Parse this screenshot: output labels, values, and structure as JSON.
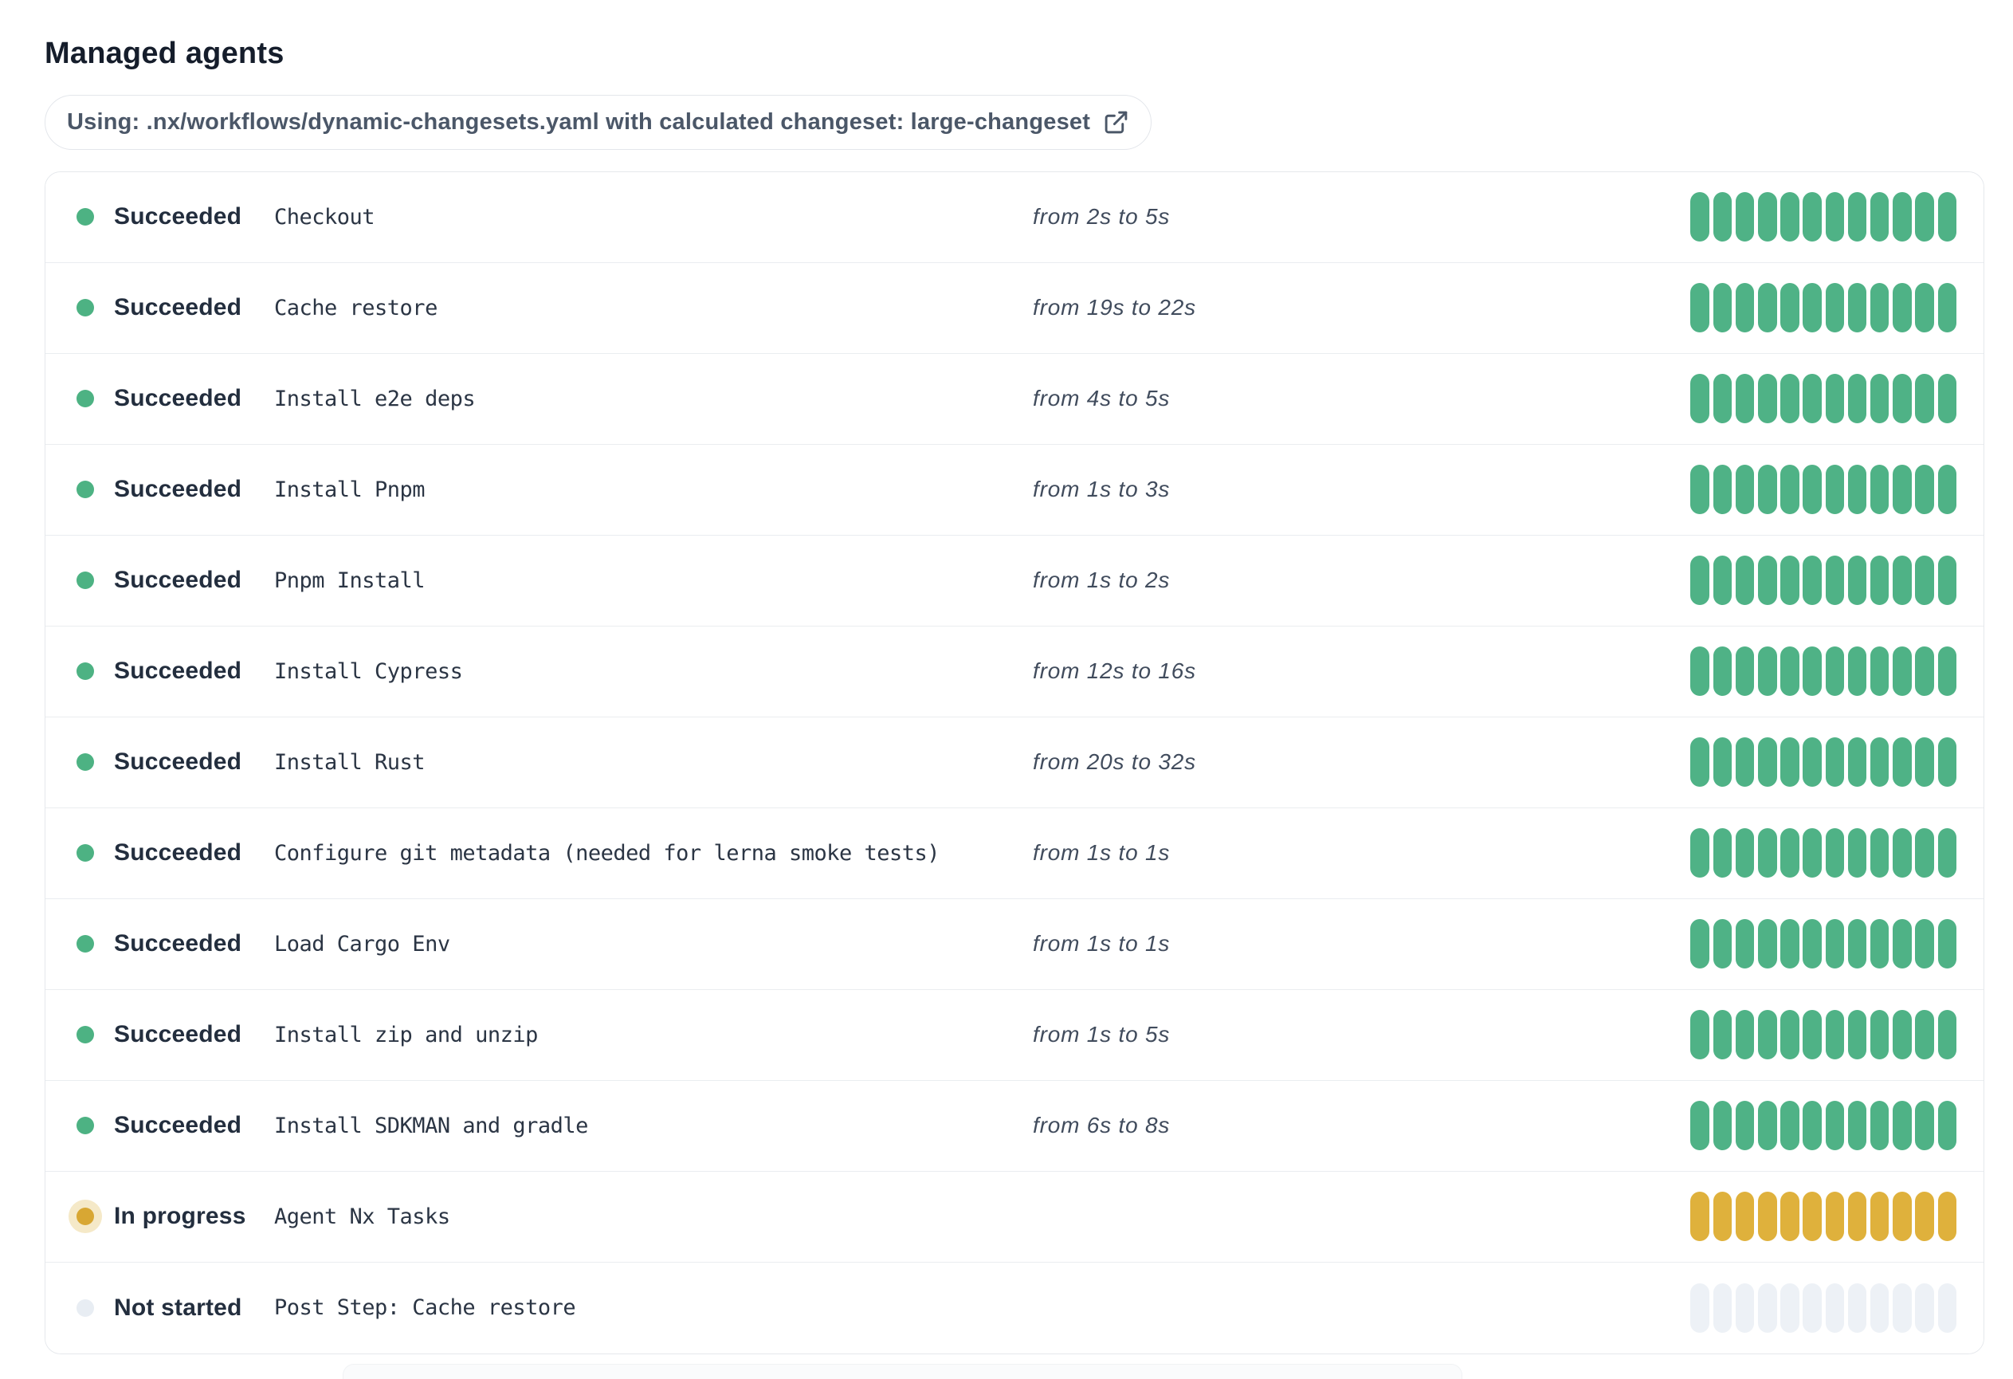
{
  "page": {
    "title": "Managed agents"
  },
  "workflow_banner": {
    "text": "Using: .nx/workflows/dynamic-changesets.yaml with calculated changeset: large-changeset",
    "icon": "external-link-icon"
  },
  "colors": {
    "succeeded_segment": "#4fb286",
    "in_progress_segment": "#dfb13c",
    "not_started_segment": "#edf1f6",
    "succeeded_dot": "#4db283",
    "in_progress_dot": "#d8a733",
    "in_progress_dot_halo": "#f5e9c8",
    "not_started_dot": "#e8edf3"
  },
  "agents": {
    "segment_count": 12,
    "rows": [
      {
        "status": "Succeeded",
        "state": "succeeded",
        "step": "Checkout",
        "duration": "from 2s to 5s"
      },
      {
        "status": "Succeeded",
        "state": "succeeded",
        "step": "Cache restore",
        "duration": "from 19s to 22s"
      },
      {
        "status": "Succeeded",
        "state": "succeeded",
        "step": "Install e2e deps",
        "duration": "from 4s to 5s"
      },
      {
        "status": "Succeeded",
        "state": "succeeded",
        "step": "Install Pnpm",
        "duration": "from 1s to 3s"
      },
      {
        "status": "Succeeded",
        "state": "succeeded",
        "step": "Pnpm Install",
        "duration": "from 1s to 2s"
      },
      {
        "status": "Succeeded",
        "state": "succeeded",
        "step": "Install Cypress",
        "duration": "from 12s to 16s"
      },
      {
        "status": "Succeeded",
        "state": "succeeded",
        "step": "Install Rust",
        "duration": "from 20s to 32s"
      },
      {
        "status": "Succeeded",
        "state": "succeeded",
        "step": "Configure git metadata (needed for lerna smoke tests)",
        "duration": "from 1s to 1s"
      },
      {
        "status": "Succeeded",
        "state": "succeeded",
        "step": "Load Cargo Env",
        "duration": "from 1s to 1s"
      },
      {
        "status": "Succeeded",
        "state": "succeeded",
        "step": "Install zip and unzip",
        "duration": "from 1s to 5s"
      },
      {
        "status": "Succeeded",
        "state": "succeeded",
        "step": "Install SDKMAN and gradle",
        "duration": "from 6s to 8s"
      },
      {
        "status": "In progress",
        "state": "in_progress",
        "step": "Agent Nx Tasks",
        "duration": ""
      },
      {
        "status": "Not started",
        "state": "not_started",
        "step": "Post Step: Cache restore",
        "duration": ""
      }
    ]
  }
}
